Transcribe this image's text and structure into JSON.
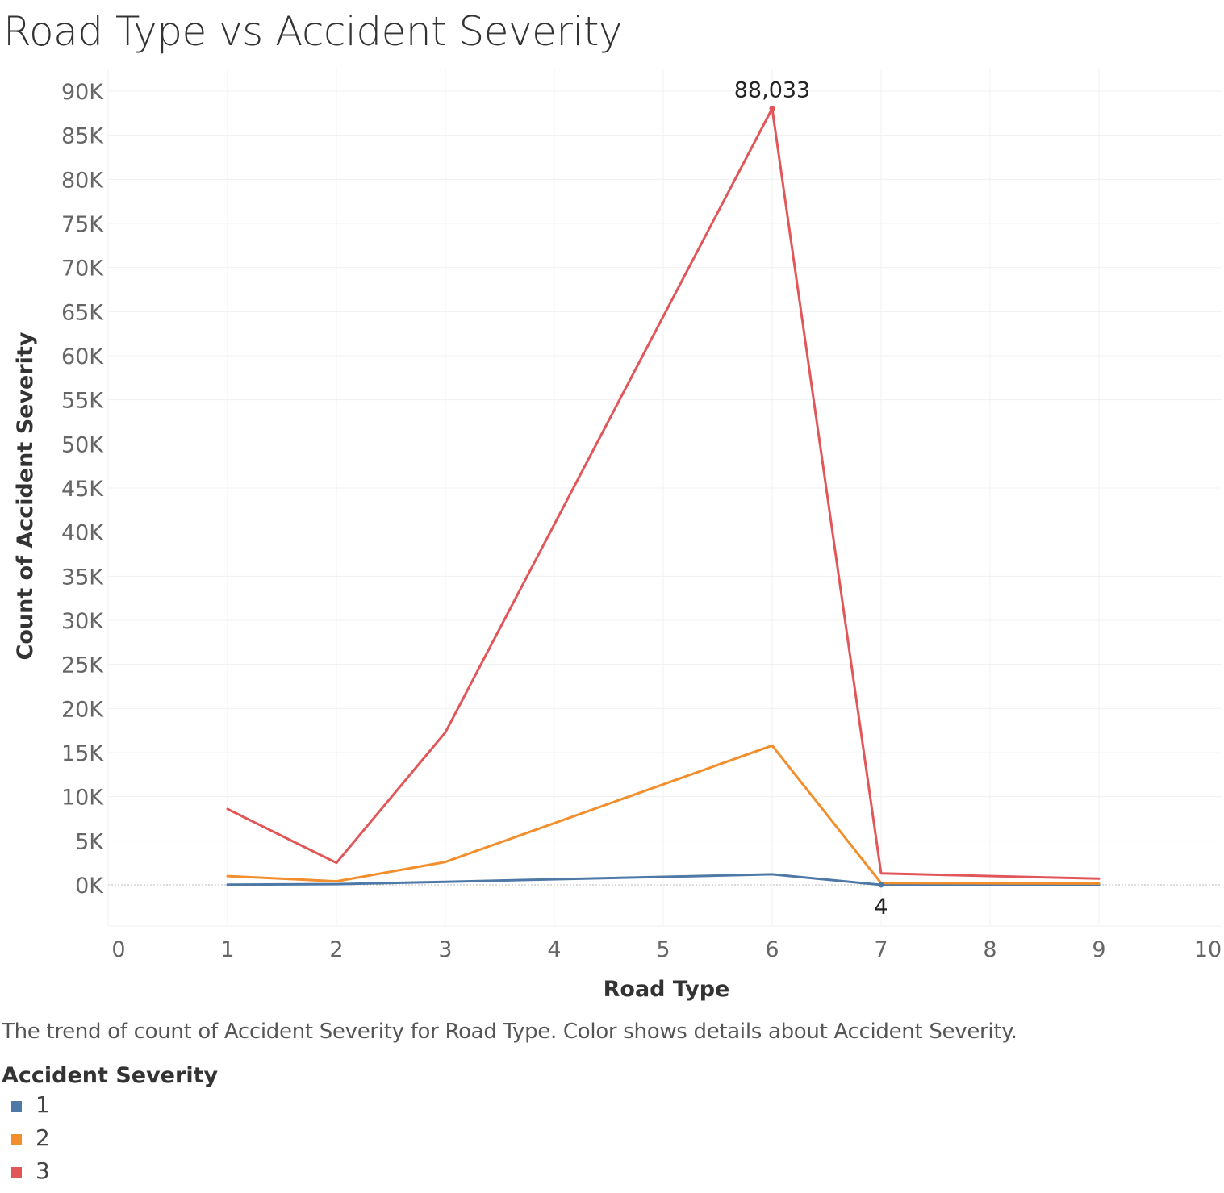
{
  "chart_data": {
    "type": "line",
    "title": "Road Type vs Accident Severity",
    "caption": "The trend of count of Accident Severity for Road Type.  Color shows details about Accident Severity.",
    "xlabel": "Road Type",
    "ylabel": "Count of Accident Severity",
    "xlim": [
      0,
      10
    ],
    "ylim": [
      -5000,
      92000
    ],
    "xticks": [
      0,
      1,
      2,
      3,
      4,
      5,
      6,
      7,
      8,
      9,
      10
    ],
    "xtick_labels": [
      "0",
      "1",
      "2",
      "3",
      "4",
      "5",
      "6",
      "7",
      "8",
      "9",
      "10"
    ],
    "yticks": [
      0,
      5000,
      10000,
      15000,
      20000,
      25000,
      30000,
      35000,
      40000,
      45000,
      50000,
      55000,
      60000,
      65000,
      70000,
      75000,
      80000,
      85000,
      90000
    ],
    "ytick_labels": [
      "0K",
      "5K",
      "10K",
      "15K",
      "20K",
      "25K",
      "30K",
      "35K",
      "40K",
      "45K",
      "50K",
      "55K",
      "60K",
      "65K",
      "70K",
      "75K",
      "80K",
      "85K",
      "90K"
    ],
    "grid": true,
    "legend_title": "Accident Severity",
    "legend_position": "bottom-left",
    "series": [
      {
        "name": "1",
        "color": "#4e79a7",
        "x": [
          1,
          2,
          3,
          6,
          7,
          9
        ],
        "y": [
          30,
          80,
          350,
          1200,
          4,
          20
        ]
      },
      {
        "name": "2",
        "color": "#f28e2b",
        "x": [
          1,
          2,
          3,
          6,
          7,
          9
        ],
        "y": [
          1000,
          400,
          2600,
          15800,
          200,
          150
        ]
      },
      {
        "name": "3",
        "color": "#e15759",
        "x": [
          1,
          2,
          3,
          6,
          7,
          9
        ],
        "y": [
          8600,
          2500,
          17300,
          88033,
          1300,
          700
        ]
      }
    ],
    "annotations": [
      {
        "text": "88,033",
        "x": 6,
        "y": 88033,
        "position": "above"
      },
      {
        "text": "4",
        "x": 7,
        "y": 4,
        "position": "below"
      }
    ]
  }
}
